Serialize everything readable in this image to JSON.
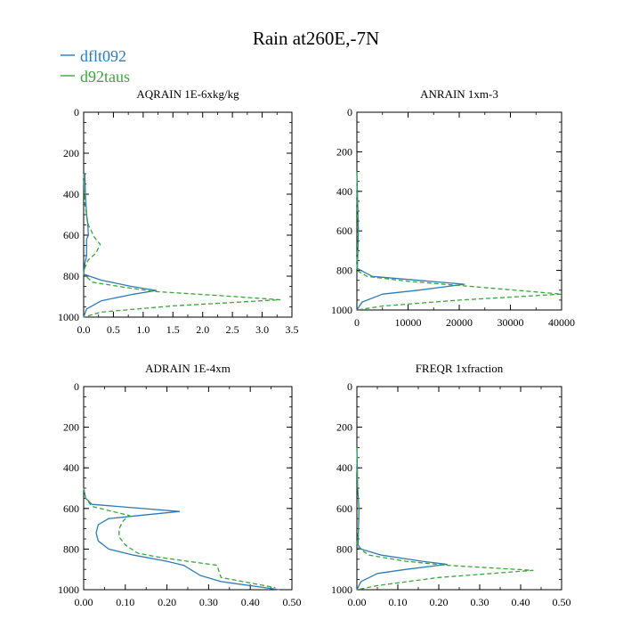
{
  "figure": {
    "title": "Rain at260E,-7N",
    "legend": [
      {
        "name": "dflt092",
        "color": "#2e7bb8",
        "dash": "solid"
      },
      {
        "name": "d92taus",
        "color": "#3aa53a",
        "dash": "dashed"
      }
    ]
  },
  "chart_data": [
    {
      "type": "line",
      "title": "AQRAIN  1E-6xkg/kg",
      "xlim": [
        0,
        3.5
      ],
      "ylim": [
        1000,
        0
      ],
      "xticks": [
        0,
        0.5,
        1,
        1.5,
        2,
        2.5,
        3,
        3.5
      ],
      "xtick_labels": [
        "0.0",
        "0.5",
        "1.0",
        "1.5",
        "2.0",
        "2.5",
        "3.0",
        "3.5"
      ],
      "yticks": [
        0,
        200,
        400,
        600,
        800,
        1000
      ],
      "ytick_labels": [
        "0",
        "200",
        "400",
        "600",
        "800",
        "1000"
      ],
      "series": [
        {
          "name": "dflt092",
          "points": [
            [
              0.02,
              300
            ],
            [
              0.03,
              400
            ],
            [
              0.05,
              500
            ],
            [
              0.07,
              550
            ],
            [
              0.08,
              600
            ],
            [
              0.05,
              620
            ],
            [
              0.05,
              650
            ],
            [
              0.05,
              700
            ],
            [
              0.02,
              740
            ],
            [
              0.0,
              790
            ],
            [
              0.3,
              820
            ],
            [
              0.8,
              850
            ],
            [
              1.22,
              870
            ],
            [
              0.8,
              890
            ],
            [
              0.3,
              920
            ],
            [
              0.05,
              960
            ],
            [
              0.0,
              1000
            ]
          ]
        },
        {
          "name": "d92taus",
          "points": [
            [
              0.0,
              300
            ],
            [
              0.02,
              450
            ],
            [
              0.08,
              550
            ],
            [
              0.18,
              610
            ],
            [
              0.28,
              645
            ],
            [
              0.2,
              690
            ],
            [
              0.08,
              720
            ],
            [
              0.02,
              760
            ],
            [
              0.0,
              790
            ],
            [
              0.15,
              830
            ],
            [
              0.7,
              855
            ],
            [
              1.2,
              875
            ],
            [
              2.3,
              895
            ],
            [
              3.3,
              915
            ],
            [
              1.5,
              945
            ],
            [
              0.3,
              975
            ],
            [
              0.0,
              1000
            ]
          ]
        }
      ]
    },
    {
      "type": "line",
      "title": "ANRAIN  1xm-3",
      "xlim": [
        0,
        40000
      ],
      "ylim": [
        1000,
        0
      ],
      "xticks": [
        0,
        10000,
        20000,
        30000,
        40000
      ],
      "xtick_labels": [
        "0",
        "10000",
        "20000",
        "30000",
        "40000"
      ],
      "yticks": [
        0,
        200,
        400,
        600,
        800,
        1000
      ],
      "ytick_labels": [
        "0",
        "200",
        "400",
        "600",
        "800",
        "1000"
      ],
      "series": [
        {
          "name": "dflt092",
          "points": [
            [
              0,
              300
            ],
            [
              200,
              500
            ],
            [
              300,
              600
            ],
            [
              200,
              700
            ],
            [
              100,
              790
            ],
            [
              3000,
              830
            ],
            [
              12000,
              850
            ],
            [
              21000,
              870
            ],
            [
              12000,
              900
            ],
            [
              5000,
              920
            ],
            [
              1000,
              960
            ],
            [
              0,
              1000
            ]
          ]
        },
        {
          "name": "d92taus",
          "points": [
            [
              0,
              300
            ],
            [
              100,
              500
            ],
            [
              200,
              600
            ],
            [
              100,
              700
            ],
            [
              0,
              800
            ],
            [
              2000,
              830
            ],
            [
              10000,
              855
            ],
            [
              22000,
              880
            ],
            [
              40000,
              920
            ],
            [
              20000,
              950
            ],
            [
              5000,
              980
            ],
            [
              0,
              1000
            ]
          ]
        }
      ]
    },
    {
      "type": "line",
      "title": "ADRAIN  1E-4xm",
      "xlim": [
        0,
        0.5
      ],
      "ylim": [
        1000,
        0
      ],
      "xticks": [
        0,
        0.1,
        0.2,
        0.3,
        0.4,
        0.5
      ],
      "xtick_labels": [
        "0.00",
        "0.10",
        "0.20",
        "0.30",
        "0.40",
        "0.50"
      ],
      "yticks": [
        0,
        200,
        400,
        600,
        800,
        1000
      ],
      "ytick_labels": [
        "0",
        "200",
        "400",
        "600",
        "800",
        "1000"
      ],
      "series": [
        {
          "name": "dflt092",
          "points": [
            [
              0.0,
              500
            ],
            [
              0.005,
              550
            ],
            [
              0.02,
              580
            ],
            [
              0.23,
              615
            ],
            [
              0.06,
              650
            ],
            [
              0.035,
              680
            ],
            [
              0.03,
              720
            ],
            [
              0.035,
              760
            ],
            [
              0.06,
              800
            ],
            [
              0.12,
              830
            ],
            [
              0.2,
              860
            ],
            [
              0.24,
              880
            ],
            [
              0.28,
              930
            ],
            [
              0.33,
              960
            ],
            [
              0.47,
              1000
            ]
          ]
        },
        {
          "name": "d92taus",
          "points": [
            [
              0.0,
              500
            ],
            [
              0.005,
              550
            ],
            [
              0.02,
              590
            ],
            [
              0.06,
              610
            ],
            [
              0.11,
              635
            ],
            [
              0.095,
              660
            ],
            [
              0.085,
              700
            ],
            [
              0.085,
              740
            ],
            [
              0.1,
              780
            ],
            [
              0.13,
              820
            ],
            [
              0.18,
              840
            ],
            [
              0.25,
              860
            ],
            [
              0.32,
              880
            ],
            [
              0.325,
              910
            ],
            [
              0.33,
              940
            ],
            [
              0.46,
              990
            ]
          ]
        }
      ]
    },
    {
      "type": "line",
      "title": "FREQR  1xfraction",
      "xlim": [
        0,
        0.5
      ],
      "ylim": [
        1000,
        0
      ],
      "xticks": [
        0,
        0.1,
        0.2,
        0.3,
        0.4,
        0.5
      ],
      "xtick_labels": [
        "0.00",
        "0.10",
        "0.20",
        "0.30",
        "0.40",
        "0.50"
      ],
      "yticks": [
        0,
        200,
        400,
        600,
        800,
        1000
      ],
      "ytick_labels": [
        "0",
        "200",
        "400",
        "600",
        "800",
        "1000"
      ],
      "series": [
        {
          "name": "dflt092",
          "points": [
            [
              0.0,
              300
            ],
            [
              0.002,
              500
            ],
            [
              0.005,
              600
            ],
            [
              0.004,
              700
            ],
            [
              0.003,
              780
            ],
            [
              0.01,
              800
            ],
            [
              0.06,
              830
            ],
            [
              0.16,
              860
            ],
            [
              0.22,
              875
            ],
            [
              0.12,
              900
            ],
            [
              0.05,
              920
            ],
            [
              0.01,
              960
            ],
            [
              0.0,
              1000
            ]
          ]
        },
        {
          "name": "d92taus",
          "points": [
            [
              0.0,
              300
            ],
            [
              0.002,
              500
            ],
            [
              0.005,
              600
            ],
            [
              0.004,
              700
            ],
            [
              0.0,
              790
            ],
            [
              0.03,
              830
            ],
            [
              0.12,
              860
            ],
            [
              0.22,
              880
            ],
            [
              0.43,
              905
            ],
            [
              0.2,
              940
            ],
            [
              0.05,
              980
            ],
            [
              0.0,
              1000
            ]
          ]
        }
      ]
    }
  ]
}
